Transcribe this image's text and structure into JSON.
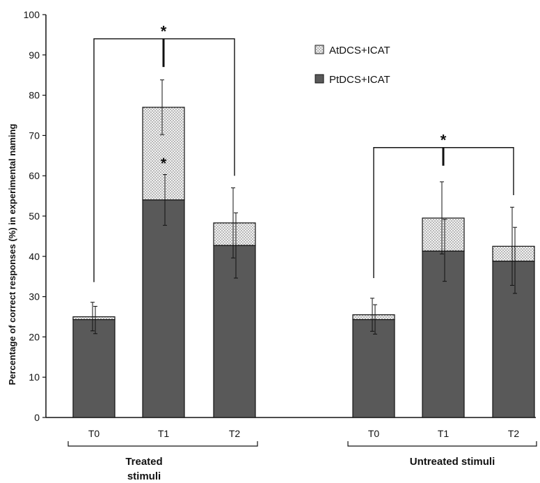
{
  "chart_data": {
    "type": "bar",
    "stacked": true,
    "ylabel": "Percentage of correct responses (%) in experimental naming",
    "ylim": [
      0,
      100
    ],
    "yticks": [
      0,
      10,
      20,
      30,
      40,
      50,
      60,
      70,
      80,
      90,
      100
    ],
    "groups": [
      {
        "label": "Treated stimuli",
        "categories": [
          "T0",
          "T1",
          "T2"
        ]
      },
      {
        "label": "Untreated stimuli",
        "categories": [
          "T0",
          "T1",
          "T2"
        ]
      }
    ],
    "bars": [
      {
        "group": 0,
        "category": "T0",
        "PtDCS+ICAT": 24.3,
        "AtDCS+ICAT": 25.0,
        "err_pt": [
          20.8,
          27.6
        ],
        "err_at": [
          21.5,
          28.6
        ]
      },
      {
        "group": 0,
        "category": "T1",
        "PtDCS+ICAT": 54.0,
        "AtDCS+ICAT": 77.0,
        "err_pt": [
          47.7,
          60.3
        ],
        "err_at": [
          70.2,
          83.8
        ]
      },
      {
        "group": 0,
        "category": "T2",
        "PtDCS+ICAT": 42.7,
        "AtDCS+ICAT": 48.3,
        "err_pt": [
          34.6,
          50.8
        ],
        "err_at": [
          39.6,
          57.0
        ]
      },
      {
        "group": 1,
        "category": "T0",
        "PtDCS+ICAT": 24.3,
        "AtDCS+ICAT": 25.5,
        "err_pt": [
          20.7,
          28.0
        ],
        "err_at": [
          21.4,
          29.6
        ]
      },
      {
        "group": 1,
        "category": "T1",
        "PtDCS+ICAT": 41.3,
        "AtDCS+ICAT": 49.5,
        "err_pt": [
          33.8,
          49.2
        ],
        "err_at": [
          40.6,
          58.5
        ]
      },
      {
        "group": 1,
        "category": "T2",
        "PtDCS+ICAT": 38.8,
        "AtDCS+ICAT": 42.5,
        "err_pt": [
          30.8,
          47.2
        ],
        "err_at": [
          32.8,
          52.2
        ]
      }
    ],
    "series": [
      {
        "name": "AtDCS+ICAT",
        "pattern": "dotted-light"
      },
      {
        "name": "PtDCS+ICAT",
        "color": "#595959"
      }
    ],
    "legend_position": "top-center",
    "annotations": [
      {
        "text": "*",
        "type": "significance-bracket",
        "group": 0,
        "from": "T0",
        "to": "T2",
        "y": 94
      },
      {
        "text": "*",
        "type": "significance-mark",
        "group": 0,
        "category": "T1",
        "y": 64
      },
      {
        "text": "*",
        "type": "significance-bracket",
        "group": 1,
        "from": "T0",
        "to": "T2",
        "y": 67
      }
    ],
    "grid": false
  }
}
